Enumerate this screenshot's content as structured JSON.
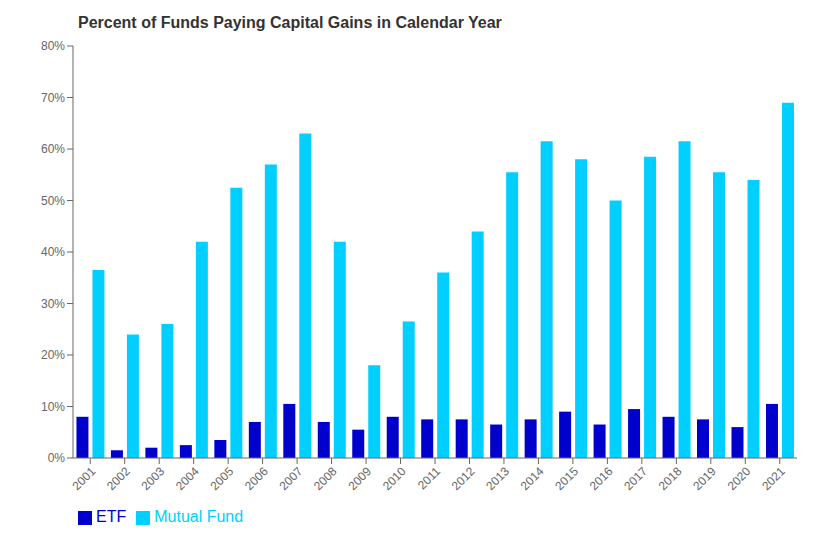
{
  "chart_data": {
    "type": "bar",
    "title": "Percent of Funds Paying Capital Gains in Calendar Year",
    "categories": [
      "2001",
      "2002",
      "2003",
      "2004",
      "2005",
      "2006",
      "2007",
      "2008",
      "2009",
      "2010",
      "2011",
      "2012",
      "2013",
      "2014",
      "2015",
      "2016",
      "2017",
      "2018",
      "2019",
      "2020",
      "2021"
    ],
    "series": [
      {
        "name": "ETF",
        "color": "#0000CD",
        "values": [
          8,
          1.5,
          2,
          2.5,
          3.5,
          7,
          10.5,
          7,
          5.5,
          8,
          7.5,
          7.5,
          6.5,
          7.5,
          9,
          6.5,
          9.5,
          8,
          7.5,
          6,
          10.5
        ]
      },
      {
        "name": "Mutual Fund",
        "color": "#00CFFF",
        "values": [
          36.5,
          24,
          26,
          42,
          52.5,
          57,
          63,
          42,
          18,
          26.5,
          36,
          44,
          55.5,
          61.5,
          58,
          50,
          58.5,
          61.5,
          55.5,
          54,
          69
        ]
      }
    ],
    "ylim": [
      0,
      80
    ],
    "yticks": [
      {
        "value": 0,
        "label": "0%"
      },
      {
        "value": 10,
        "label": "10%"
      },
      {
        "value": 20,
        "label": "20%"
      },
      {
        "value": 30,
        "label": "30%"
      },
      {
        "value": 40,
        "label": "40%"
      },
      {
        "value": 50,
        "label": "50%"
      },
      {
        "value": 60,
        "label": "60%"
      },
      {
        "value": 70,
        "label": "70%"
      },
      {
        "value": 80,
        "label": "80%"
      }
    ],
    "grid": false,
    "legend": "lower left"
  }
}
